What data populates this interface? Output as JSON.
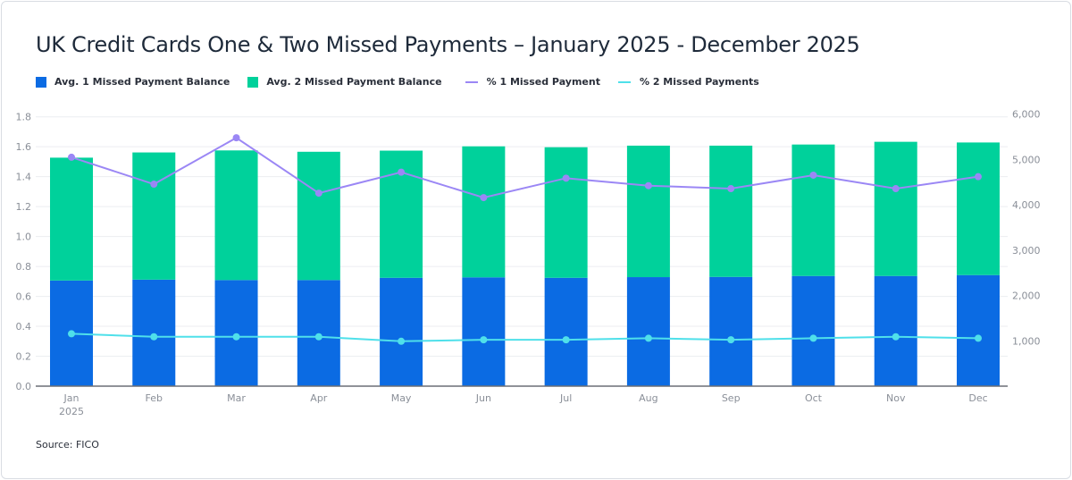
{
  "chart_data": {
    "type": "bar",
    "title": "UK Credit Cards One & Two Missed Payments – January 2025 - December 2025",
    "categories": [
      "Jan",
      "Feb",
      "Mar",
      "Apr",
      "May",
      "Jun",
      "Jul",
      "Aug",
      "Sep",
      "Oct",
      "Nov",
      "Dec"
    ],
    "category_sublabel": {
      "Jan": "2025"
    },
    "series": [
      {
        "name": "Avg. 1 Missed Payment Balance",
        "type": "bar",
        "axis": "right",
        "stacked": true,
        "color": "#0b6be3",
        "values": [
          2330,
          2350,
          2340,
          2340,
          2390,
          2400,
          2390,
          2405,
          2410,
          2430,
          2430,
          2450
        ]
      },
      {
        "name": "Avg. 2 Missed Payment Balance",
        "type": "bar",
        "axis": "right",
        "stacked": true,
        "color": "#00d19b",
        "values": [
          2710,
          2805,
          2860,
          2830,
          2805,
          2890,
          2880,
          2900,
          2895,
          2900,
          2960,
          2925
        ]
      },
      {
        "name": "% 1 Missed Payment",
        "type": "line",
        "axis": "left",
        "color": "#9b87f5",
        "values": [
          1.53,
          1.35,
          1.66,
          1.29,
          1.43,
          1.26,
          1.39,
          1.34,
          1.32,
          1.41,
          1.32,
          1.4
        ]
      },
      {
        "name": "% 2 Missed Payments",
        "type": "line",
        "axis": "left",
        "color": "#4fe0ea",
        "values": [
          0.35,
          0.33,
          0.33,
          0.33,
          0.3,
          0.31,
          0.31,
          0.32,
          0.31,
          0.32,
          0.33,
          0.32
        ]
      }
    ],
    "left_axis": {
      "range": [
        0,
        1.8
      ],
      "ticks": [
        "0.0",
        "0.2",
        "0.4",
        "0.6",
        "0.8",
        "1.0",
        "1.2",
        "1.4",
        "1.6",
        "1.8"
      ]
    },
    "right_axis": {
      "range": [
        0,
        6000
      ],
      "ticks": [
        "1,000",
        "2,000",
        "3,000",
        "4,000",
        "5,000",
        "6,000"
      ]
    },
    "grid": true,
    "legend_placement": "top-left",
    "source": "Source: FICO"
  }
}
